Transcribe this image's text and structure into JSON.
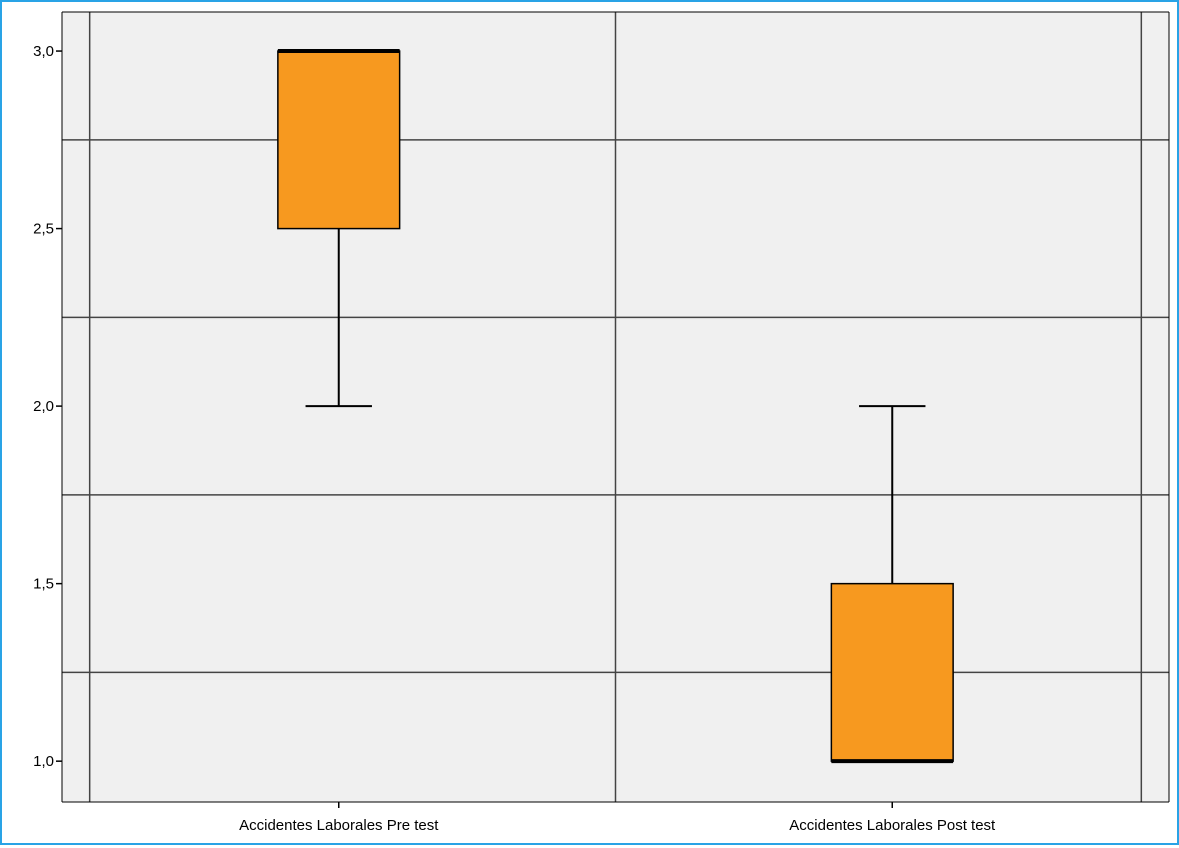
{
  "chart_data": {
    "type": "boxplot",
    "categories": [
      "Accidentes Laborales Pre test",
      "Accidentes Laborales Post test"
    ],
    "boxes": [
      {
        "category": "Accidentes Laborales Pre test",
        "min": 2.0,
        "q1": 2.5,
        "median": 3.0,
        "q3": 3.0,
        "max": 3.0
      },
      {
        "category": "Accidentes Laborales Post test",
        "min": 1.0,
        "q1": 1.0,
        "median": 1.0,
        "q3": 1.5,
        "max": 2.0
      }
    ],
    "y_ticks": [
      "1,0",
      "1,5",
      "2,0",
      "2,5",
      "3,0"
    ],
    "y_tick_values": [
      1.0,
      1.5,
      2.0,
      2.5,
      3.0
    ],
    "gridlines_y": [
      1.25,
      1.75,
      2.25,
      2.75
    ],
    "ylim": [
      0.885,
      3.11
    ],
    "grid": true,
    "title": "",
    "xlabel": "",
    "ylabel": "",
    "colors": {
      "box_fill": "#f7991f",
      "plot_background": "#f0f0f0",
      "grid": "#444444",
      "frame_border": "#29a3e6"
    }
  }
}
